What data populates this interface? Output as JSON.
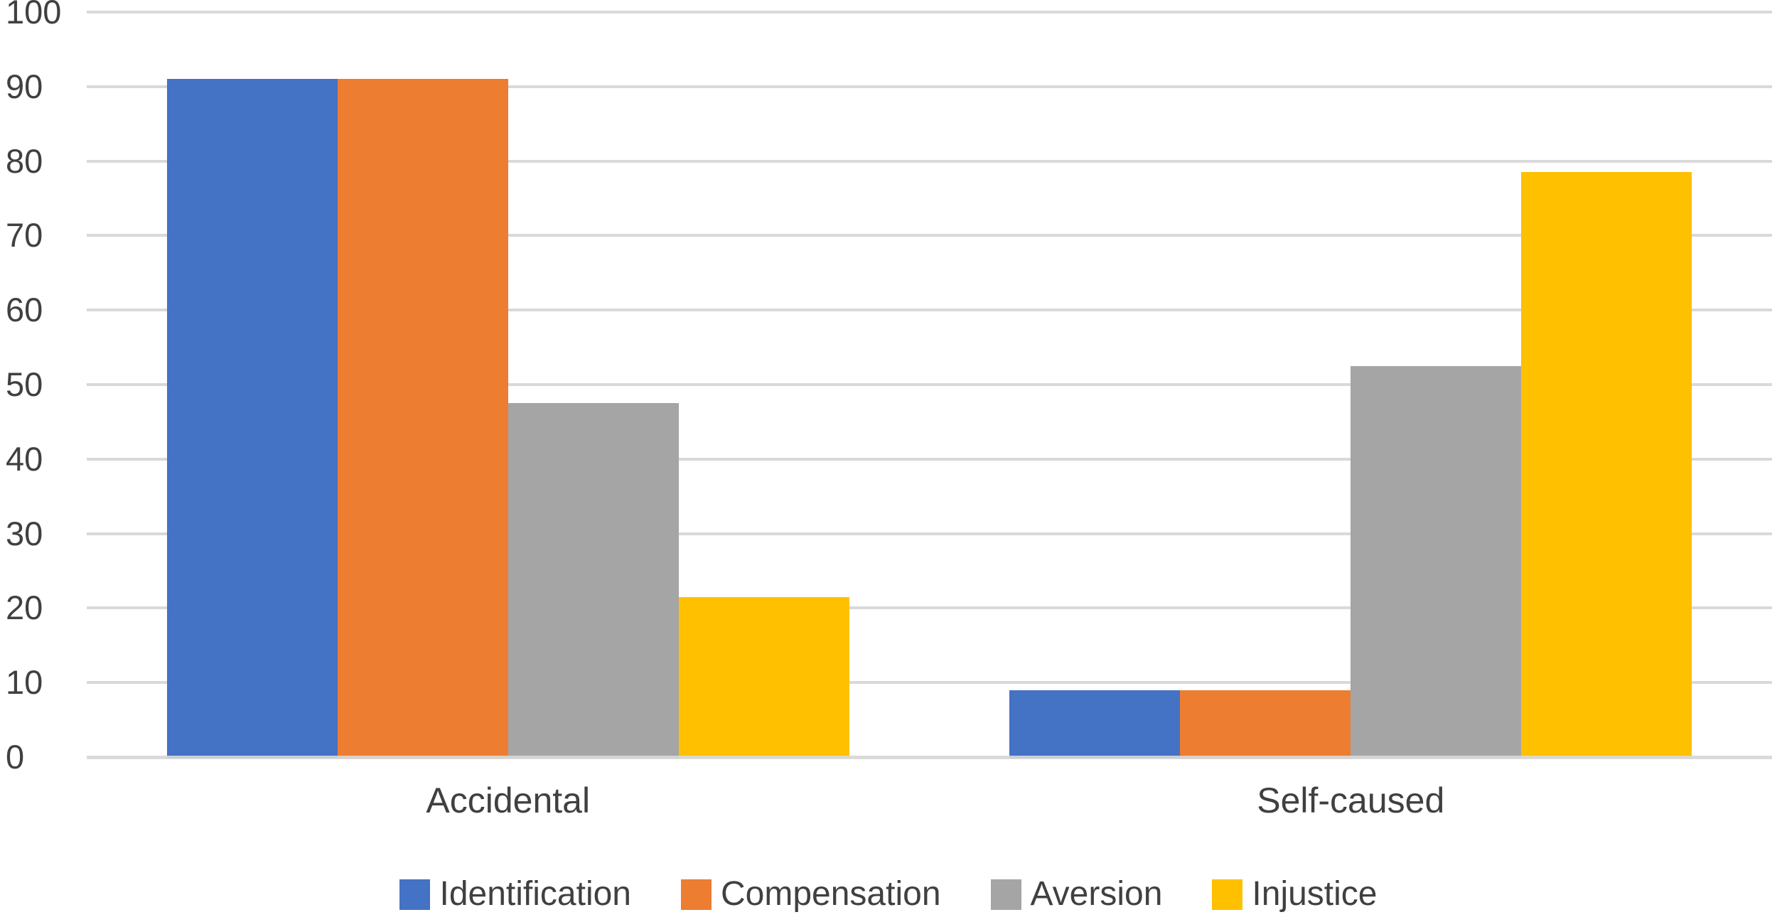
{
  "chart_data": {
    "type": "bar",
    "title": "",
    "xlabel": "",
    "ylabel": "",
    "categories": [
      "Accidental",
      "Self-caused"
    ],
    "series": [
      {
        "name": "Identification",
        "color": "#4472C4",
        "values": [
          91,
          9
        ]
      },
      {
        "name": "Compensation",
        "color": "#ED7D31",
        "values": [
          91,
          9
        ]
      },
      {
        "name": "Aversion",
        "color": "#A5A5A5",
        "values": [
          47.5,
          52.5
        ]
      },
      {
        "name": "Injustice",
        "color": "#FFC000",
        "values": [
          21.5,
          78.5
        ]
      }
    ],
    "ylim": [
      0,
      100
    ],
    "yticks": [
      0,
      10,
      20,
      30,
      40,
      50,
      60,
      70,
      80,
      90,
      100
    ],
    "grid": true,
    "legend_position": "bottom",
    "colors": {
      "gridline": "#D9D9D9",
      "axis_line": "#D9D9D9",
      "axis_text": "#404040",
      "background": "#FFFFFF"
    }
  }
}
